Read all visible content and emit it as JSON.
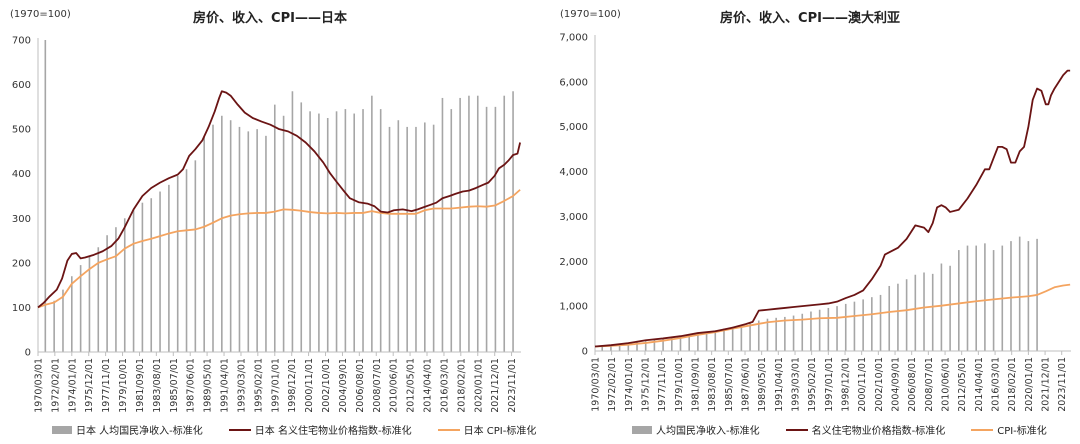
{
  "chart_data": [
    {
      "type": "bar+line",
      "title": "房价、收入、CPI——日本",
      "base_note": "(1970=100)",
      "ylim": [
        0,
        700
      ],
      "yticks": [
        0,
        100,
        200,
        300,
        400,
        500,
        600,
        700
      ],
      "ytick_labels": [
        "0",
        "100",
        "200",
        "300",
        "400",
        "500",
        "600",
        "700"
      ],
      "xlim": [
        1970.17,
        2024.9
      ],
      "xtick_labels": [
        "1970/03/01",
        "1972/02/01",
        "1974/01/01",
        "1975/12/01",
        "1977/11/01",
        "1979/10/01",
        "1981/09/01",
        "1983/08/01",
        "1985/07/01",
        "1987/06/01",
        "1989/05/01",
        "1991/04/01",
        "1993/03/01",
        "1995/02/01",
        "1997/01/01",
        "1998/12/01",
        "2000/11/01",
        "2002/10/01",
        "2004/09/01",
        "2006/08/01",
        "2008/07/01",
        "2010/06/01",
        "2012/05/01",
        "2014/04/01",
        "2016/03/01",
        "2018/02/01",
        "2020/01/01",
        "2021/12/01",
        "2023/11/01"
      ],
      "xtick_values": [
        1970.17,
        1972.08,
        1974.0,
        1975.92,
        1977.83,
        1979.75,
        1981.67,
        1983.58,
        1985.5,
        1987.42,
        1989.33,
        1991.25,
        1993.17,
        1995.08,
        1997.0,
        1998.92,
        2000.83,
        2002.75,
        2004.67,
        2006.58,
        2008.5,
        2010.42,
        2012.33,
        2014.25,
        2016.17,
        2018.08,
        2020.0,
        2021.92,
        2023.83
      ],
      "grid": false,
      "legend_position": "bottom",
      "colors": {
        "income": "#a6a6a6",
        "house": "#6b1414",
        "cpi": "#f4a460"
      },
      "series": [
        {
          "name": "日本 人均国民净收入-标准化",
          "kind": "bar",
          "x": [
            1971,
            1972,
            1973,
            1974,
            1975,
            1976,
            1977,
            1978,
            1979,
            1980,
            1981,
            1982,
            1983,
            1984,
            1985,
            1986,
            1987,
            1988,
            1989,
            1990,
            1991,
            1992,
            1993,
            1994,
            1995,
            1996,
            1997,
            1998,
            1999,
            2000,
            2001,
            2002,
            2003,
            2004,
            2005,
            2006,
            2007,
            2008,
            2009,
            2010,
            2011,
            2012,
            2013,
            2014,
            2015,
            2016,
            2017,
            2018,
            2019,
            2020,
            2021,
            2022,
            2023,
            2024
          ],
          "values": [
            700,
            115,
            140,
            170,
            195,
            215,
            235,
            262,
            280,
            300,
            320,
            335,
            345,
            360,
            375,
            395,
            410,
            430,
            485,
            510,
            530,
            520,
            505,
            495,
            500,
            485,
            555,
            530,
            585,
            560,
            540,
            535,
            525,
            540,
            545,
            535,
            545,
            575,
            545,
            505,
            520,
            505,
            505,
            515,
            510,
            570,
            545,
            570,
            575,
            575,
            550,
            550,
            575,
            585
          ]
        },
        {
          "name": "日本 名义住宅物业价格指数-标准化",
          "kind": "line",
          "x": [
            1970.17,
            1970.8,
            1971.5,
            1972.3,
            1972.9,
            1973.5,
            1974.0,
            1974.5,
            1975.0,
            1975.5,
            1976.5,
            1977.5,
            1978.5,
            1979.3,
            1980.0,
            1981.0,
            1982.0,
            1983.0,
            1984.0,
            1985.0,
            1986.0,
            1986.6,
            1987.3,
            1988.0,
            1988.8,
            1989.5,
            1990.2,
            1990.7,
            1991.0,
            1991.5,
            1992.0,
            1992.8,
            1993.6,
            1994.5,
            1995.5,
            1996.5,
            1997.5,
            1998.5,
            1999.5,
            2000.5,
            2001.5,
            2002.5,
            2003.3,
            2004.0,
            2004.8,
            2005.5,
            2006.5,
            2007.5,
            2008.3,
            2009.0,
            2009.8,
            2010.5,
            2011.5,
            2012.5,
            2013.2,
            2013.9,
            2014.6,
            2015.3,
            2016.0,
            2016.8,
            2017.5,
            2018.3,
            2019.0,
            2019.8,
            2020.6,
            2021.2,
            2021.9,
            2022.4,
            2023.0,
            2023.5,
            2024.0,
            2024.5,
            2024.8
          ],
          "values": [
            100,
            110,
            125,
            140,
            165,
            205,
            220,
            222,
            210,
            212,
            218,
            226,
            238,
            255,
            280,
            320,
            350,
            368,
            380,
            390,
            398,
            410,
            440,
            455,
            475,
            505,
            540,
            570,
            585,
            582,
            575,
            555,
            537,
            525,
            517,
            510,
            500,
            495,
            485,
            470,
            450,
            425,
            400,
            382,
            362,
            345,
            336,
            333,
            327,
            315,
            313,
            318,
            320,
            316,
            320,
            325,
            330,
            335,
            345,
            350,
            355,
            360,
            362,
            368,
            375,
            380,
            395,
            412,
            420,
            430,
            442,
            445,
            470
          ]
        },
        {
          "name": "日本 CPI-标准化",
          "kind": "line",
          "x": [
            1970.17,
            1971,
            1972,
            1973,
            1974,
            1975,
            1976,
            1977,
            1978,
            1979,
            1980,
            1981,
            1982,
            1983,
            1984,
            1985,
            1986,
            1987,
            1988,
            1989,
            1990,
            1991,
            1992,
            1993,
            1994,
            1995,
            1996,
            1997,
            1998,
            1999,
            2000,
            2001,
            2002,
            2003,
            2004,
            2005,
            2006,
            2007,
            2008,
            2009,
            2010,
            2011,
            2012,
            2013,
            2014,
            2015,
            2016,
            2017,
            2018,
            2019,
            2020,
            2021,
            2022,
            2023,
            2024,
            2024.8
          ],
          "values": [
            100,
            106,
            111,
            124,
            153,
            170,
            186,
            200,
            208,
            215,
            232,
            243,
            249,
            254,
            260,
            266,
            271,
            273,
            275,
            281,
            290,
            300,
            306,
            309,
            311,
            312,
            312,
            315,
            320,
            319,
            317,
            314,
            312,
            311,
            312,
            311,
            312,
            312,
            316,
            312,
            310,
            310,
            310,
            310,
            318,
            322,
            322,
            322,
            324,
            326,
            327,
            326,
            329,
            339,
            350,
            364
          ]
        }
      ]
    },
    {
      "type": "bar+line",
      "title": "房价、收入、CPI——澳大利亚",
      "base_note": "(1970=100)",
      "ylim": [
        0,
        7000
      ],
      "yticks": [
        0,
        1000,
        2000,
        3000,
        4000,
        5000,
        6000,
        7000
      ],
      "ytick_labels": [
        "0",
        "1,000",
        "2,000",
        "3,000",
        "4,000",
        "5,000",
        "6,000",
        "7,000"
      ],
      "xlim": [
        1970.17,
        2024.9
      ],
      "xtick_labels": [
        "1970/03/01",
        "1972/02/01",
        "1974/01/01",
        "1975/12/01",
        "1977/11/01",
        "1979/10/01",
        "1981/09/01",
        "1983/08/01",
        "1985/07/01",
        "1987/06/01",
        "1989/05/01",
        "1991/04/01",
        "1993/03/01",
        "1995/02/01",
        "1997/01/01",
        "1998/12/01",
        "2000/11/01",
        "2002/10/01",
        "2004/09/01",
        "2006/08/01",
        "2008/07/01",
        "2010/06/01",
        "2012/05/01",
        "2014/04/01",
        "2016/03/01",
        "2018/02/01",
        "2020/01/01",
        "2021/12/01",
        "2023/11/01"
      ],
      "xtick_values": [
        1970.17,
        1972.08,
        1974.0,
        1975.92,
        1977.83,
        1979.75,
        1981.67,
        1983.58,
        1985.5,
        1987.42,
        1989.33,
        1991.25,
        1993.17,
        1995.08,
        1997.0,
        1998.92,
        2000.83,
        2002.75,
        2004.67,
        2006.58,
        2008.5,
        2010.42,
        2012.33,
        2014.25,
        2016.17,
        2018.08,
        2020.0,
        2021.92,
        2023.83
      ],
      "grid": false,
      "legend_position": "bottom",
      "colors": {
        "income": "#a6a6a6",
        "house": "#6b1414",
        "cpi": "#f4a460"
      },
      "series": [
        {
          "name": "人均国民净收入-标准化",
          "kind": "bar",
          "x": [
            1971,
            1972,
            1973,
            1974,
            1975,
            1976,
            1977,
            1978,
            1979,
            1980,
            1981,
            1982,
            1983,
            1984,
            1985,
            1986,
            1987,
            1988,
            1989,
            1990,
            1991,
            1992,
            1993,
            1994,
            1995,
            1996,
            1997,
            1998,
            1999,
            2000,
            2001,
            2002,
            2003,
            2004,
            2005,
            2006,
            2007,
            2008,
            2009,
            2010,
            2011,
            2012,
            2013,
            2014,
            2015,
            2016,
            2017,
            2018,
            2019,
            2020,
            2021
          ],
          "values": [
            110,
            125,
            145,
            170,
            195,
            220,
            245,
            270,
            300,
            330,
            370,
            400,
            420,
            460,
            500,
            540,
            580,
            620,
            680,
            720,
            740,
            760,
            790,
            830,
            880,
            920,
            960,
            1000,
            1050,
            1100,
            1150,
            1200,
            1250,
            1450,
            1500,
            1600,
            1700,
            1750,
            1720,
            1950,
            1900,
            2250,
            2350,
            2350,
            2400,
            2250,
            2350,
            2450,
            2550,
            2450,
            2500
          ]
        },
        {
          "name": "名义住宅物业价格指数-标准化",
          "kind": "line",
          "x": [
            1970.17,
            1972,
            1974,
            1976,
            1978,
            1980,
            1982,
            1984,
            1986,
            1987.5,
            1988.3,
            1989.0,
            1990,
            1991,
            1992,
            1993,
            1994,
            1995,
            1996,
            1997,
            1998,
            1999,
            2000,
            2001,
            2002,
            2003,
            2003.5,
            2004,
            2005,
            2006,
            2007,
            2008,
            2008.5,
            2009,
            2009.5,
            2010,
            2010.5,
            2011,
            2012,
            2013,
            2014,
            2015,
            2015.5,
            2016,
            2016.5,
            2017,
            2017.5,
            2018,
            2018.5,
            2019,
            2019.5,
            2020,
            2020.5,
            2021,
            2021.5,
            2022,
            2022.3,
            2022.6,
            2023,
            2023.5,
            2024,
            2024.5,
            2024.8
          ],
          "values": [
            100,
            130,
            175,
            240,
            280,
            330,
            400,
            440,
            520,
            600,
            650,
            900,
            920,
            940,
            960,
            980,
            1000,
            1020,
            1040,
            1060,
            1100,
            1180,
            1250,
            1350,
            1600,
            1900,
            2150,
            2200,
            2300,
            2500,
            2800,
            2750,
            2650,
            2850,
            3200,
            3250,
            3200,
            3100,
            3150,
            3400,
            3700,
            4050,
            4050,
            4300,
            4550,
            4550,
            4500,
            4200,
            4200,
            4450,
            4550,
            5000,
            5600,
            5850,
            5800,
            5500,
            5500,
            5700,
            5850,
            6000,
            6150,
            6250,
            6250
          ]
        },
        {
          "name": "CPI-标准化",
          "kind": "line",
          "x": [
            1970.17,
            1972,
            1974,
            1976,
            1978,
            1980,
            1982,
            1984,
            1986,
            1988,
            1990,
            1992,
            1994,
            1996,
            1998,
            2000,
            2002,
            2004,
            2006,
            2008,
            2010,
            2012,
            2014,
            2016,
            2018,
            2020,
            2021,
            2022,
            2023,
            2024,
            2024.8
          ],
          "values": [
            100,
            115,
            140,
            180,
            230,
            290,
            360,
            420,
            500,
            570,
            640,
            680,
            700,
            730,
            740,
            780,
            820,
            870,
            910,
            970,
            1010,
            1060,
            1110,
            1150,
            1190,
            1220,
            1250,
            1330,
            1420,
            1460,
            1480
          ]
        }
      ]
    }
  ]
}
